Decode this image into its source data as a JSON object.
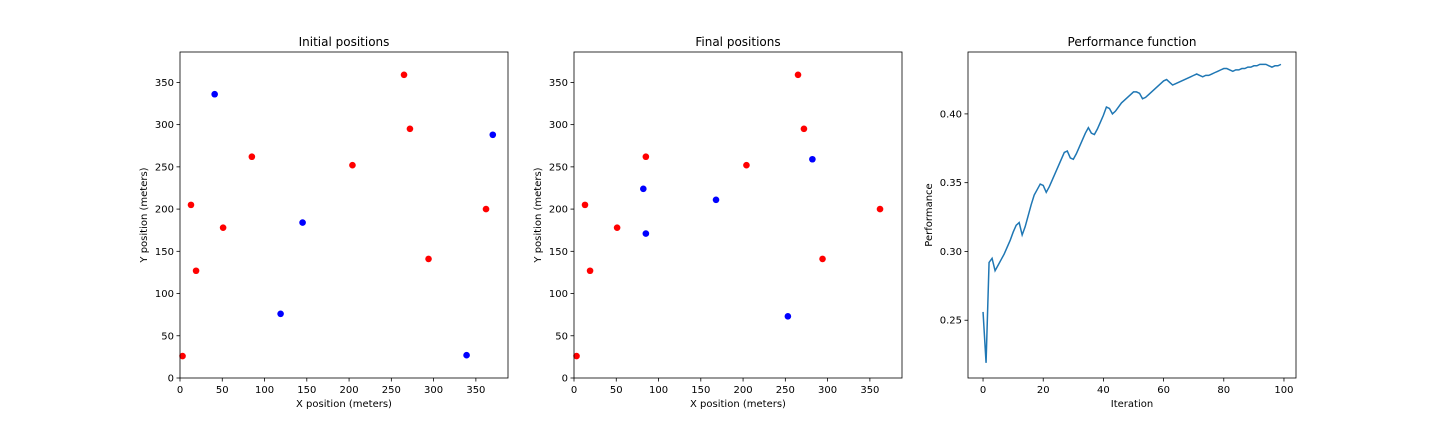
{
  "colors": {
    "red": "#ff0000",
    "blue": "#0000ff",
    "line": "#1f77b4"
  },
  "chart_data": [
    {
      "type": "scatter",
      "title": "Initial positions",
      "xlabel": "X position (meters)",
      "ylabel": "Y position (meters)",
      "xlim": [
        0,
        388
      ],
      "ylim": [
        0,
        386
      ],
      "xticks": [
        0,
        50,
        100,
        150,
        200,
        250,
        300,
        350
      ],
      "yticks": [
        0,
        50,
        100,
        150,
        200,
        250,
        300,
        350
      ],
      "grid": false,
      "series": [
        {
          "color": "#ff0000",
          "points": [
            [
              3,
              26
            ],
            [
              13,
              205
            ],
            [
              19,
              127
            ],
            [
              51,
              178
            ],
            [
              85,
              262
            ],
            [
              204,
              252
            ],
            [
              265,
              359
            ],
            [
              272,
              295
            ],
            [
              294,
              141
            ],
            [
              362,
              200
            ]
          ]
        },
        {
          "color": "#0000ff",
          "points": [
            [
              41,
              336
            ],
            [
              145,
              184
            ],
            [
              119,
              76
            ],
            [
              339,
              27
            ],
            [
              370,
              288
            ]
          ]
        }
      ]
    },
    {
      "type": "scatter",
      "title": "Final positions",
      "xlabel": "X position (meters)",
      "ylabel": "Y position (meters)",
      "xlim": [
        0,
        388
      ],
      "ylim": [
        0,
        386
      ],
      "xticks": [
        0,
        50,
        100,
        150,
        200,
        250,
        300,
        350
      ],
      "yticks": [
        0,
        50,
        100,
        150,
        200,
        250,
        300,
        350
      ],
      "grid": false,
      "series": [
        {
          "color": "#ff0000",
          "points": [
            [
              3,
              26
            ],
            [
              13,
              205
            ],
            [
              19,
              127
            ],
            [
              51,
              178
            ],
            [
              85,
              262
            ],
            [
              204,
              252
            ],
            [
              265,
              359
            ],
            [
              272,
              295
            ],
            [
              294,
              141
            ],
            [
              362,
              200
            ]
          ]
        },
        {
          "color": "#0000ff",
          "points": [
            [
              82,
              224
            ],
            [
              85,
              171
            ],
            [
              168,
              211
            ],
            [
              253,
              73
            ],
            [
              282,
              259
            ]
          ]
        }
      ]
    },
    {
      "type": "line",
      "title": "Performance function",
      "xlabel": "Iteration",
      "ylabel": "Performance",
      "xlim": [
        -5,
        104
      ],
      "ylim": [
        0.208,
        0.445
      ],
      "xticks": [
        0,
        20,
        40,
        60,
        80,
        100
      ],
      "yticks": [
        0.25,
        0.3,
        0.35,
        0.4
      ],
      "ytick_labels": [
        "0.25",
        "0.30",
        "0.35",
        "0.40"
      ],
      "grid": false,
      "series": [
        {
          "color": "#1f77b4",
          "x": [
            0,
            1,
            2,
            3,
            4,
            5,
            6,
            7,
            8,
            9,
            10,
            11,
            12,
            13,
            14,
            15,
            16,
            17,
            18,
            19,
            20,
            21,
            22,
            23,
            24,
            25,
            26,
            27,
            28,
            29,
            30,
            31,
            32,
            33,
            34,
            35,
            36,
            37,
            38,
            39,
            40,
            41,
            42,
            43,
            44,
            45,
            46,
            47,
            48,
            49,
            50,
            51,
            52,
            53,
            54,
            55,
            56,
            57,
            58,
            59,
            60,
            61,
            62,
            63,
            64,
            65,
            66,
            67,
            68,
            69,
            70,
            71,
            72,
            73,
            74,
            75,
            76,
            77,
            78,
            79,
            80,
            81,
            82,
            83,
            84,
            85,
            86,
            87,
            88,
            89,
            90,
            91,
            92,
            93,
            94,
            95,
            96,
            97,
            98,
            99
          ],
          "values": [
            0.256,
            0.219,
            0.292,
            0.295,
            0.286,
            0.29,
            0.294,
            0.298,
            0.303,
            0.308,
            0.314,
            0.319,
            0.321,
            0.312,
            0.318,
            0.326,
            0.334,
            0.341,
            0.345,
            0.349,
            0.348,
            0.343,
            0.347,
            0.352,
            0.357,
            0.362,
            0.367,
            0.372,
            0.373,
            0.368,
            0.367,
            0.371,
            0.376,
            0.381,
            0.386,
            0.39,
            0.386,
            0.385,
            0.389,
            0.394,
            0.399,
            0.405,
            0.404,
            0.4,
            0.402,
            0.405,
            0.408,
            0.41,
            0.412,
            0.414,
            0.416,
            0.416,
            0.415,
            0.411,
            0.412,
            0.414,
            0.416,
            0.418,
            0.42,
            0.422,
            0.424,
            0.425,
            0.423,
            0.421,
            0.422,
            0.423,
            0.424,
            0.425,
            0.426,
            0.427,
            0.428,
            0.429,
            0.428,
            0.427,
            0.428,
            0.428,
            0.429,
            0.43,
            0.431,
            0.432,
            0.433,
            0.433,
            0.432,
            0.431,
            0.432,
            0.432,
            0.433,
            0.433,
            0.434,
            0.434,
            0.435,
            0.435,
            0.436,
            0.436,
            0.436,
            0.435,
            0.434,
            0.435,
            0.435,
            0.436
          ]
        }
      ]
    }
  ]
}
